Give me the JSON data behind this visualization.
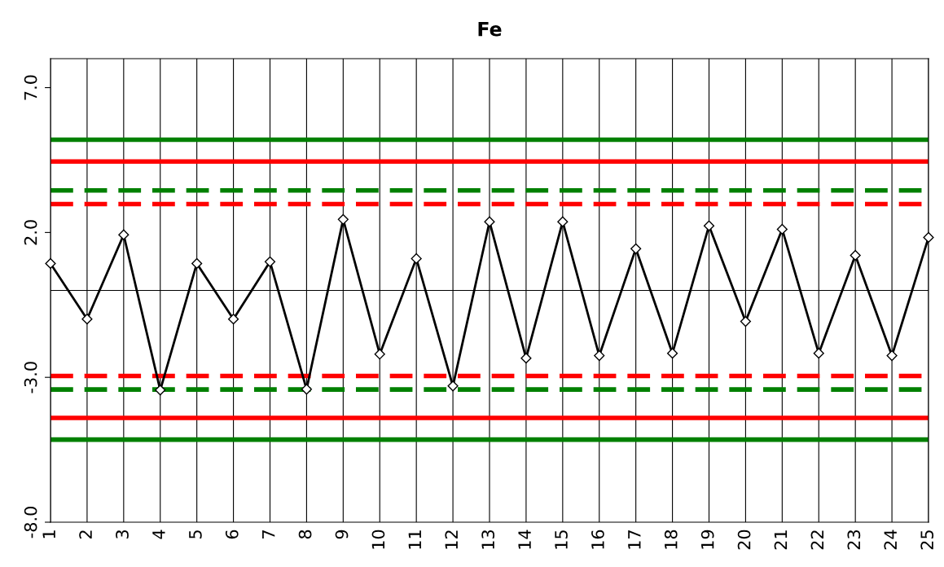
{
  "chart_data": {
    "type": "line",
    "title": "Fe",
    "categories": [
      "1",
      "2",
      "3",
      "4",
      "5",
      "6",
      "7",
      "8",
      "9",
      "10",
      "11",
      "12",
      "13",
      "14",
      "15",
      "16",
      "17",
      "18",
      "19",
      "20",
      "21",
      "22",
      "23",
      "24",
      "25"
    ],
    "series": [
      {
        "color": "#000000",
        "values": [
          0.93,
          -0.99,
          1.92,
          -3.44,
          0.93,
          -0.99,
          0.99,
          -3.41,
          2.45,
          -2.2,
          1.1,
          -3.3,
          2.37,
          -2.34,
          2.37,
          -2.25,
          1.44,
          -2.17,
          2.23,
          -1.07,
          2.11,
          -2.17,
          1.21,
          -2.25,
          1.83
        ]
      }
    ],
    "ylim": [
      -8,
      8
    ],
    "yticks": [
      {
        "value": 7,
        "label": "7.0"
      },
      {
        "value": 2,
        "label": "2.0"
      },
      {
        "value": -3,
        "label": "-3.0"
      },
      {
        "value": -8,
        "label": "-8.0"
      }
    ],
    "grid": "x",
    "marker": "diamond",
    "line_style": "solid",
    "ref_lines": [
      {
        "axis": "y",
        "value": 0,
        "color": "#000000",
        "line_style": "solid"
      },
      {
        "axis": "y",
        "value": 5.2,
        "color": "#008000",
        "line_style": "solid"
      },
      {
        "axis": "y",
        "value": 4.45,
        "color": "#ff0000",
        "line_style": "solid"
      },
      {
        "axis": "y",
        "value": 3.45,
        "color": "#008000",
        "line_style": "dashed"
      },
      {
        "axis": "y",
        "value": 2.98,
        "color": "#ff0000",
        "line_style": "dashed"
      },
      {
        "axis": "y",
        "value": -2.95,
        "color": "#ff0000",
        "line_style": "dashed"
      },
      {
        "axis": "y",
        "value": -3.42,
        "color": "#008000",
        "line_style": "dashed"
      },
      {
        "axis": "y",
        "value": -4.4,
        "color": "#ff0000",
        "line_style": "solid"
      },
      {
        "axis": "y",
        "value": -5.15,
        "color": "#008000",
        "line_style": "solid"
      }
    ]
  }
}
